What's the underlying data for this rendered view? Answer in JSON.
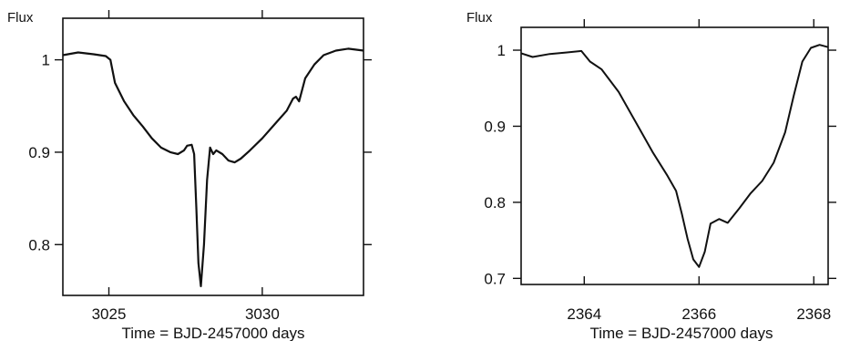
{
  "chart_data": [
    {
      "type": "line",
      "title": "",
      "ylabel": "Flux",
      "xlabel": "Time = BJD-2457000 days",
      "xlim": [
        3023.5,
        3033.3
      ],
      "ylim": [
        0.745,
        1.045
      ],
      "xticks": [
        3025,
        3030
      ],
      "xtick_labels": [
        "3025",
        "3030"
      ],
      "yticks": [
        0.8,
        0.9,
        1.0
      ],
      "ytick_labels": [
        "0.8",
        "0.9",
        "1"
      ],
      "grid": false,
      "series": [
        {
          "x": [
            3023.5,
            3024.0,
            3024.5,
            3024.9,
            3025.05,
            3025.2,
            3025.5,
            3025.8,
            3026.1,
            3026.4,
            3026.7,
            3027.0,
            3027.25,
            3027.45,
            3027.55,
            3027.7,
            3027.78,
            3027.85,
            3027.92,
            3028.0,
            3028.1,
            3028.2,
            3028.3,
            3028.4,
            3028.5,
            3028.7,
            3028.9,
            3029.1,
            3029.3,
            3029.6,
            3030.0,
            3030.4,
            3030.8,
            3031.0,
            3031.1,
            3031.2,
            3031.4,
            3031.7,
            3032.0,
            3032.4,
            3032.8,
            3033.3
          ],
          "y": [
            1.005,
            1.008,
            1.006,
            1.004,
            1.0,
            0.975,
            0.955,
            0.94,
            0.928,
            0.915,
            0.905,
            0.9,
            0.898,
            0.902,
            0.907,
            0.908,
            0.898,
            0.84,
            0.78,
            0.755,
            0.8,
            0.87,
            0.905,
            0.898,
            0.902,
            0.898,
            0.891,
            0.889,
            0.893,
            0.902,
            0.915,
            0.93,
            0.945,
            0.958,
            0.96,
            0.955,
            0.98,
            0.995,
            1.005,
            1.01,
            1.012,
            1.01
          ]
        }
      ]
    },
    {
      "type": "line",
      "title": "",
      "ylabel": "Flux",
      "xlabel": "Time = BJD-2457000 days",
      "xlim": [
        2362.9,
        2368.25
      ],
      "ylim": [
        0.692,
        1.03
      ],
      "xticks": [
        2364,
        2366,
        2368
      ],
      "xtick_labels": [
        "2364",
        "2366",
        "2368"
      ],
      "yticks": [
        0.7,
        0.8,
        0.9,
        1.0
      ],
      "ytick_labels": [
        "0.7",
        "0.8",
        "0.9",
        "1"
      ],
      "grid": false,
      "series": [
        {
          "x": [
            2362.9,
            2363.1,
            2363.4,
            2363.7,
            2363.95,
            2364.1,
            2364.3,
            2364.6,
            2364.9,
            2365.2,
            2365.45,
            2365.6,
            2365.7,
            2365.8,
            2365.9,
            2366.0,
            2366.1,
            2366.2,
            2366.35,
            2366.5,
            2366.7,
            2366.9,
            2367.1,
            2367.3,
            2367.5,
            2367.65,
            2367.8,
            2367.95,
            2368.1,
            2368.25
          ],
          "y": [
            0.996,
            0.991,
            0.995,
            0.997,
            0.999,
            0.985,
            0.975,
            0.945,
            0.905,
            0.865,
            0.835,
            0.815,
            0.785,
            0.752,
            0.725,
            0.715,
            0.735,
            0.772,
            0.778,
            0.773,
            0.792,
            0.812,
            0.828,
            0.852,
            0.892,
            0.94,
            0.985,
            1.003,
            1.007,
            1.004
          ]
        }
      ]
    }
  ]
}
